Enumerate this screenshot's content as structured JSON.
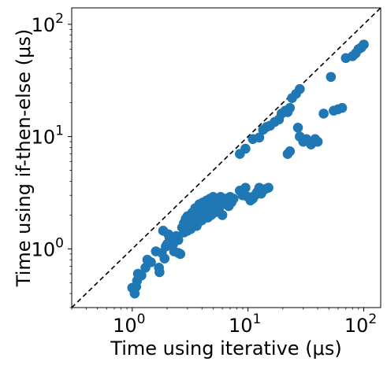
{
  "chart_data": {
    "type": "scatter",
    "title": "",
    "xlabel": "Time using iterative (μs)",
    "ylabel": "Time using if-then-else (μs)",
    "xscale": "log",
    "yscale": "log",
    "xlim": [
      0.3,
      140
    ],
    "ylim": [
      0.3,
      140
    ],
    "xticks": [
      {
        "value": 1,
        "base": "10",
        "exp": "0"
      },
      {
        "value": 10,
        "base": "10",
        "exp": "1"
      },
      {
        "value": 100,
        "base": "10",
        "exp": "2"
      }
    ],
    "yticks": [
      {
        "value": 1,
        "base": "10",
        "exp": "0"
      },
      {
        "value": 10,
        "base": "10",
        "exp": "1"
      },
      {
        "value": 100,
        "base": "10",
        "exp": "2"
      }
    ],
    "grid": false,
    "reference_line": "y = x (dashed)",
    "marker_color": "#1f77b4",
    "series": [
      {
        "points": [
          [
            1.0,
            0.45
          ],
          [
            1.05,
            0.4
          ],
          [
            1.08,
            0.46
          ],
          [
            1.1,
            0.52
          ],
          [
            1.12,
            0.6
          ],
          [
            1.2,
            0.58
          ],
          [
            1.3,
            0.68
          ],
          [
            1.35,
            0.8
          ],
          [
            1.45,
            0.76
          ],
          [
            1.6,
            0.95
          ],
          [
            1.7,
            0.68
          ],
          [
            1.72,
            0.62
          ],
          [
            1.8,
            0.92
          ],
          [
            1.85,
            1.45
          ],
          [
            1.9,
            0.82
          ],
          [
            1.95,
            1.05
          ],
          [
            2.0,
            1.1
          ],
          [
            2.05,
            1.35
          ],
          [
            2.1,
            1.25
          ],
          [
            2.2,
            1.2
          ],
          [
            2.25,
            1.1
          ],
          [
            2.3,
            0.95
          ],
          [
            2.4,
            1.3
          ],
          [
            2.5,
            1.2
          ],
          [
            2.5,
            0.92
          ],
          [
            2.6,
            0.9
          ],
          [
            2.7,
            1.55
          ],
          [
            2.8,
            1.7
          ],
          [
            2.8,
            1.4
          ],
          [
            2.9,
            1.85
          ],
          [
            3.0,
            1.95
          ],
          [
            3.0,
            1.45
          ],
          [
            3.1,
            1.6
          ],
          [
            3.2,
            1.5
          ],
          [
            3.3,
            2.1
          ],
          [
            3.4,
            1.8
          ],
          [
            3.5,
            1.65
          ],
          [
            3.5,
            2.3
          ],
          [
            3.6,
            1.6
          ],
          [
            3.7,
            2.0
          ],
          [
            3.8,
            1.75
          ],
          [
            3.8,
            2.5
          ],
          [
            3.9,
            1.9
          ],
          [
            4.0,
            2.2
          ],
          [
            4.0,
            1.8
          ],
          [
            4.1,
            2.6
          ],
          [
            4.2,
            2.0
          ],
          [
            4.3,
            2.4
          ],
          [
            4.4,
            2.7
          ],
          [
            4.5,
            2.1
          ],
          [
            4.5,
            1.9
          ],
          [
            4.6,
            2.3
          ],
          [
            4.7,
            2.8
          ],
          [
            4.8,
            2.5
          ],
          [
            4.8,
            2.0
          ],
          [
            4.9,
            2.2
          ],
          [
            5.0,
            2.9
          ],
          [
            5.1,
            2.1
          ],
          [
            5.2,
            2.6
          ],
          [
            5.3,
            2.3
          ],
          [
            5.4,
            2.4
          ],
          [
            5.5,
            2.7
          ],
          [
            5.6,
            2.2
          ],
          [
            5.8,
            2.9
          ],
          [
            6.0,
            2.5
          ],
          [
            6.0,
            2.0
          ],
          [
            6.2,
            2.7
          ],
          [
            6.5,
            2.8
          ],
          [
            6.8,
            2.4
          ],
          [
            7.0,
            2.9
          ],
          [
            7.2,
            2.6
          ],
          [
            7.5,
            2.8
          ],
          [
            8.5,
            3.3
          ],
          [
            8.8,
            3.2
          ],
          [
            9.0,
            3.0
          ],
          [
            9.5,
            3.5
          ],
          [
            10.0,
            2.9
          ],
          [
            10.5,
            2.7
          ],
          [
            11.0,
            2.8
          ],
          [
            11.5,
            3.0
          ],
          [
            12.0,
            3.2
          ],
          [
            12.5,
            3.5
          ],
          [
            13.0,
            3.1
          ],
          [
            14.0,
            3.4
          ],
          [
            15.0,
            3.5
          ],
          [
            8.5,
            7.0
          ],
          [
            9.5,
            7.8
          ],
          [
            11.0,
            9.5
          ],
          [
            12.5,
            9.8
          ],
          [
            13.5,
            11.5
          ],
          [
            14.5,
            12.2
          ],
          [
            15.5,
            12.5
          ],
          [
            17.0,
            13.5
          ],
          [
            18.5,
            14.2
          ],
          [
            19.5,
            16.0
          ],
          [
            21.0,
            17.0
          ],
          [
            22.0,
            16.5
          ],
          [
            23.0,
            18.0
          ],
          [
            24.0,
            22.0
          ],
          [
            26.0,
            24.0
          ],
          [
            28.0,
            26.5
          ],
          [
            22.0,
            7.0
          ],
          [
            23.0,
            7.4
          ],
          [
            27.0,
            12.0
          ],
          [
            28.0,
            10.0
          ],
          [
            30.0,
            9.0
          ],
          [
            32.0,
            9.5
          ],
          [
            35.0,
            8.5
          ],
          [
            38.0,
            9.5
          ],
          [
            40.0,
            9.0
          ],
          [
            45.0,
            16.0
          ],
          [
            52.0,
            34.0
          ],
          [
            55.0,
            17.0
          ],
          [
            60.0,
            17.5
          ],
          [
            65.0,
            18.0
          ],
          [
            70.0,
            50.0
          ],
          [
            80.0,
            52.0
          ],
          [
            85.0,
            55.0
          ],
          [
            90.0,
            60.0
          ],
          [
            95.0,
            62.0
          ],
          [
            100.0,
            66.0
          ]
        ]
      }
    ]
  }
}
